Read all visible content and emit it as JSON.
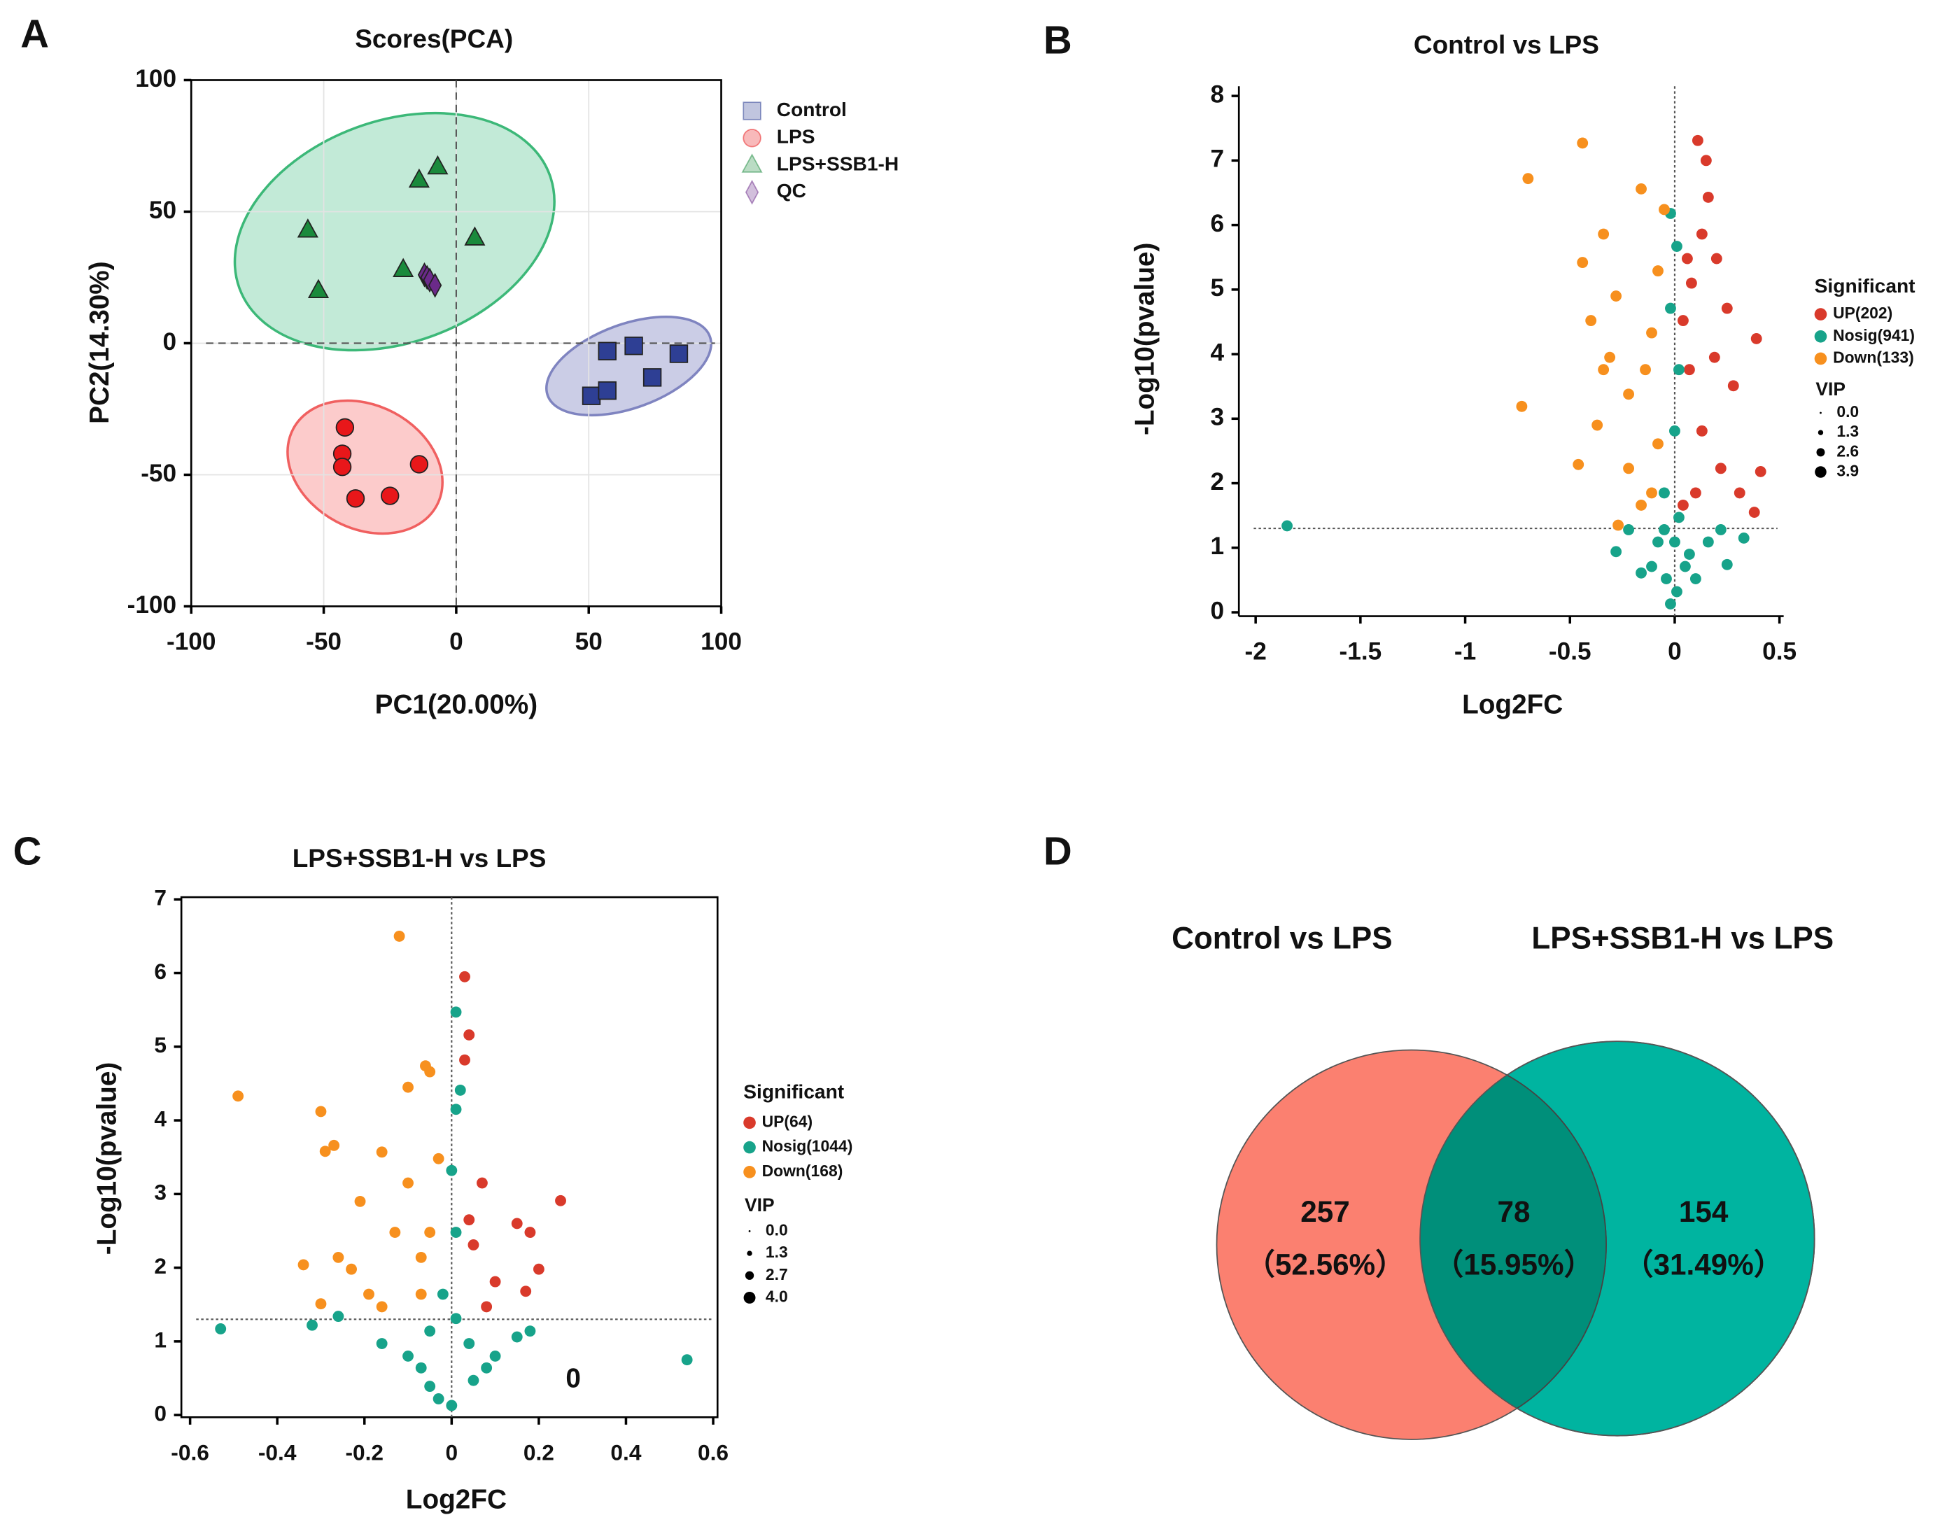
{
  "chart_data": [
    {
      "type": "scatter",
      "panel": "A",
      "title": "Scores(PCA)",
      "x_label": "PC1(20.00%)",
      "y_label": "PC2(14.30%)",
      "xlim": [
        -100,
        100
      ],
      "ylim": [
        -100,
        100
      ],
      "xticks": [
        -100,
        -50,
        0,
        50,
        100
      ],
      "yticks": [
        -100,
        -50,
        0,
        50,
        100
      ],
      "grid": true,
      "box": true,
      "hlines": [
        0
      ],
      "vlines": [
        0
      ],
      "series": [
        {
          "name": "Control",
          "color": "#2e3f94",
          "marker": "square",
          "x": [
            51,
            57,
            57,
            67,
            74,
            84
          ],
          "values": [
            -20,
            -18,
            -3,
            -1,
            -13,
            -4
          ]
        },
        {
          "name": "LPS",
          "color": "#e8171a",
          "marker": "circle",
          "x": [
            -42,
            -43,
            -43,
            -38,
            -25,
            -14
          ],
          "values": [
            -32,
            -42,
            -47,
            -59,
            -58,
            -46
          ]
        },
        {
          "name": "LPS+SSB1-H",
          "color": "#1a8a3c",
          "marker": "triangle",
          "x": [
            -56,
            -52,
            -20,
            -14,
            -7,
            7
          ],
          "values": [
            43,
            20,
            28,
            62,
            67,
            40
          ]
        },
        {
          "name": "QC",
          "color": "#6b2a8a",
          "marker": "diamond",
          "x": [
            -12,
            -11,
            -10,
            -8
          ],
          "values": [
            26,
            25,
            24,
            22
          ]
        }
      ]
    },
    {
      "type": "scatter",
      "panel": "B",
      "title": "Control vs LPS",
      "x_label": "Log2FC",
      "y_label": "-Log10(pvalue)",
      "xlim": [
        -2.08,
        0.52
      ],
      "ylim": [
        -0.06,
        8.15
      ],
      "xticks": [
        -2,
        -1.5,
        -1,
        -0.5,
        0,
        0.5
      ],
      "yticks": [
        0,
        1,
        2,
        3,
        4,
        5,
        6,
        7,
        8
      ],
      "grid": false,
      "box": false,
      "hlines": [
        1.3
      ],
      "vlines": [
        0
      ],
      "legend_title": "Significant",
      "size_legend": {
        "title": "VIP",
        "values": [
          {
            "value": 0,
            "label": "0.0"
          },
          1.3,
          2.6,
          3.9
        ]
      },
      "series": [
        {
          "name": "UP(202)",
          "color": "#d93a2b",
          "marker": "circle",
          "x": [
            0.11,
            0.15,
            0.13,
            0.06,
            0.2,
            0.39,
            0.41,
            0.38,
            0.25,
            0.28,
            0.07,
            0.13,
            0.22,
            0.1,
            0.04,
            0.19,
            0.16,
            0.04,
            0.31,
            0.08
          ],
          "values": [
            7.31,
            7.0,
            5.86,
            5.48,
            5.48,
            4.24,
            2.18,
            1.55,
            4.71,
            3.51,
            3.76,
            2.81,
            2.23,
            1.85,
            4.52,
            3.95,
            6.43,
            1.66,
            1.85,
            5.1
          ]
        },
        {
          "name": "Nosig(941)",
          "color": "#17a38a",
          "marker": "circle",
          "x": [
            -1.85,
            -0.28,
            0.25,
            0.33,
            -0.02,
            0.01,
            -0.02,
            0.02,
            0,
            -0.05,
            -0.08,
            0.07,
            -0.11,
            0.01,
            -0.02,
            0.1,
            -0.16,
            0.16,
            -0.22,
            0.22,
            0.02,
            -0.05,
            0.05,
            -0.04,
            0
          ],
          "values": [
            1.34,
            0.94,
            0.74,
            1.15,
            6.18,
            5.67,
            4.71,
            3.76,
            2.81,
            1.85,
            1.09,
            0.9,
            0.71,
            0.32,
            0.13,
            0.52,
            0.61,
            1.09,
            1.28,
            1.28,
            1.47,
            1.28,
            0.71,
            0.52,
            1.09
          ]
        },
        {
          "name": "Down(133)",
          "color": "#f7901e",
          "marker": "circle",
          "x": [
            -0.7,
            -0.44,
            -0.73,
            -0.46,
            -0.44,
            -0.16,
            -0.34,
            -0.28,
            -0.34,
            -0.37,
            -0.22,
            -0.16,
            -0.27,
            -0.11,
            -0.22,
            -0.08,
            -0.14,
            -0.08,
            -0.11,
            -0.05,
            -0.4,
            -0.31
          ],
          "values": [
            6.72,
            7.27,
            3.19,
            2.29,
            5.42,
            6.56,
            5.86,
            4.9,
            3.76,
            2.9,
            2.23,
            1.66,
            1.35,
            4.33,
            3.38,
            5.29,
            3.76,
            2.61,
            1.85,
            6.24,
            4.52,
            3.95
          ]
        }
      ]
    },
    {
      "type": "scatter",
      "panel": "C",
      "title": "LPS+SSB1-H vs LPS",
      "x_label": "Log2FC",
      "y_label": "-Log10(pvalue)",
      "xlim": [
        -0.62,
        0.61
      ],
      "ylim": [
        -0.03,
        7.03
      ],
      "xticks": [
        -0.6,
        -0.4,
        -0.2,
        0,
        0.2,
        0.4,
        0.6
      ],
      "yticks": [
        0,
        1,
        2,
        3,
        4,
        5,
        6,
        7
      ],
      "grid": false,
      "box": true,
      "hlines": [
        1.3
      ],
      "vlines": [
        0
      ],
      "legend_title": "Significant",
      "annotation": "0",
      "size_legend": {
        "title": "VIP",
        "values": [
          {
            "value": 0,
            "label": "0.0"
          },
          1.3,
          2.7,
          {
            "value": 4,
            "label": "4.0"
          }
        ]
      },
      "series": [
        {
          "name": "UP(64)",
          "color": "#d93a2b",
          "marker": "circle",
          "x": [
            0.03,
            0.04,
            0.03,
            0.25,
            0.15,
            0.18,
            0.2,
            0.17,
            0.1,
            0.07,
            0.05,
            0.08,
            0.04
          ],
          "values": [
            5.95,
            5.16,
            4.82,
            2.91,
            2.6,
            2.48,
            1.98,
            1.68,
            1.81,
            3.15,
            2.31,
            1.47,
            2.65
          ]
        },
        {
          "name": "Nosig(1044)",
          "color": "#17a38a",
          "marker": "circle",
          "x": [
            -0.53,
            0.54,
            -0.32,
            -0.26,
            0.01,
            0.02,
            0.01,
            0,
            0.01,
            -0.02,
            -0.05,
            0.04,
            -0.1,
            0.1,
            0,
            -0.05,
            0.05,
            -0.16,
            0.15,
            0.18,
            -0.07,
            0.08,
            0.01,
            -0.03
          ],
          "values": [
            1.17,
            0.75,
            1.22,
            1.34,
            5.47,
            4.41,
            4.15,
            3.32,
            2.48,
            1.64,
            1.14,
            0.97,
            0.8,
            0.8,
            0.13,
            0.39,
            0.47,
            0.97,
            1.06,
            1.14,
            0.64,
            0.64,
            1.31,
            0.22
          ]
        },
        {
          "name": "Down(168)",
          "color": "#f7901e",
          "marker": "circle",
          "x": [
            -0.12,
            -0.49,
            -0.3,
            -0.29,
            -0.27,
            -0.34,
            -0.3,
            -0.21,
            -0.16,
            -0.1,
            -0.06,
            -0.05,
            -0.19,
            -0.13,
            -0.07,
            -0.1,
            -0.23,
            -0.05,
            -0.16,
            -0.03,
            -0.26,
            -0.07
          ],
          "values": [
            6.5,
            4.33,
            4.12,
            3.58,
            3.66,
            2.04,
            1.51,
            2.9,
            3.57,
            4.45,
            4.74,
            4.66,
            1.64,
            2.48,
            2.14,
            3.15,
            1.98,
            2.48,
            1.47,
            3.48,
            2.14,
            1.64
          ]
        }
      ]
    },
    {
      "type": "venn",
      "panel": "D",
      "sets": [
        "Control vs LPS",
        "LPS+SSB1-H vs LPS"
      ],
      "colors": [
        "#fb8070",
        "#00b4a0"
      ],
      "overlap_color": "#008f7a",
      "regions": [
        {
          "count": 257,
          "percent": {
            "value": 52.56,
            "label": "（52.56%）"
          }
        },
        {
          "count": 78,
          "percent": {
            "value": 15.95,
            "label": "（15.95%）"
          }
        },
        {
          "count": 154,
          "percent": {
            "value": 31.49,
            "label": "（31.49%）"
          }
        }
      ]
    }
  ]
}
